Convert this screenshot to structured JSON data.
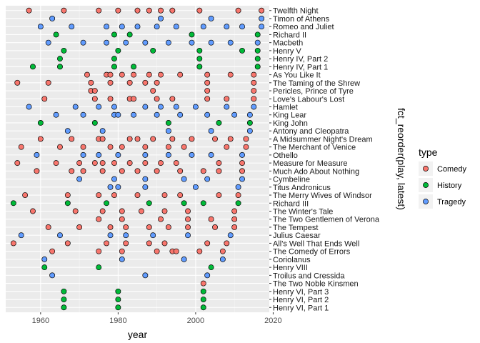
{
  "colors": {
    "panel": "#ebebeb",
    "grid_major": "#ffffff",
    "grid_minor": "#f5f5f5",
    "Comedy": "#F8766D",
    "History": "#00BA38",
    "Tragedy": "#619CFF",
    "point_stroke": "#000000"
  },
  "chart_data": {
    "type": "scatter",
    "xlabel": "year",
    "ylabel": "fct_reorder(play, latest)",
    "xlim": [
      1951,
      2019
    ],
    "x_ticks": [
      1960,
      1980,
      2000,
      2020
    ],
    "grid": true,
    "legend": {
      "title": "type",
      "position": "right",
      "entries": [
        "Comedy",
        "History",
        "Tragedy"
      ]
    },
    "plays": [
      {
        "name": "Twelfth Night",
        "type": "Comedy",
        "years": [
          1957,
          1966,
          1975,
          1980,
          1985,
          1988,
          1991,
          1994,
          2001,
          2011,
          2017
        ]
      },
      {
        "name": "Timon of Athens",
        "type": "Tragedy",
        "years": [
          1963,
          1991,
          2004,
          2017
        ]
      },
      {
        "name": "Romeo and Juliet",
        "type": "Tragedy",
        "years": [
          1960,
          1968,
          1977,
          1981,
          1985,
          1990,
          1995,
          2002,
          2008,
          2012,
          2017
        ]
      },
      {
        "name": "Richard II",
        "type": "History",
        "years": [
          1964,
          1979,
          1983,
          1999,
          2016
        ]
      },
      {
        "name": "Macbeth",
        "type": "Tragedy",
        "years": [
          1962,
          1971,
          1977,
          1982,
          1987,
          1993,
          1999,
          2004,
          2009,
          2016
        ]
      },
      {
        "name": "Henry V",
        "type": "History",
        "years": [
          1966,
          1980,
          1989,
          2001,
          2012,
          2016
        ]
      },
      {
        "name": "Henry IV, Part 2",
        "type": "History",
        "years": [
          1965,
          1979,
          2001,
          2016
        ]
      },
      {
        "name": "Henry IV, Part 1",
        "type": "History",
        "years": [
          1958,
          1965,
          1979,
          1984,
          2001,
          2016
        ]
      },
      {
        "name": "As You Like It",
        "type": "Comedy",
        "years": [
          1972,
          1977,
          1978,
          1981,
          1984,
          1988,
          1991,
          1996,
          2003,
          2009,
          2015
        ]
      },
      {
        "name": "The Taming of the Shrew",
        "type": "Comedy",
        "years": [
          1954,
          1962,
          1973,
          1978,
          1983,
          1987,
          1990,
          2003,
          2015
        ]
      },
      {
        "name": "Pericles, Prince of Tyre",
        "type": "Comedy",
        "years": [
          1973,
          1974,
          1989,
          2003,
          2015
        ]
      },
      {
        "name": "Love's Labour's Lost",
        "type": "Comedy",
        "years": [
          1961,
          1974,
          1978,
          1983,
          1984,
          1990,
          1994,
          2003,
          2008,
          2015
        ]
      },
      {
        "name": "Hamlet",
        "type": "Tragedy",
        "years": [
          1957,
          1969,
          1975,
          1979,
          1987,
          1991,
          1995,
          2000,
          2008,
          2015
        ]
      },
      {
        "name": "King Lear",
        "type": "Tragedy",
        "years": [
          1964,
          1971,
          1979,
          1980,
          1984,
          1990,
          1996,
          2003,
          2010,
          2014
        ]
      },
      {
        "name": "King John",
        "type": "History",
        "years": [
          1960,
          1974,
          1993,
          2006,
          2014
        ]
      },
      {
        "name": "Antony and Cleopatra",
        "type": "Tragedy",
        "years": [
          1967,
          1976,
          1993,
          2004,
          2014
        ]
      },
      {
        "name": "A Midsummer Night's Dream",
        "type": "Comedy",
        "years": [
          1960,
          1968,
          1975,
          1976,
          1983,
          1985,
          1989,
          1994,
          1999,
          2005,
          2009,
          2013
        ]
      },
      {
        "name": "The Merchant of Venice",
        "type": "Comedy",
        "years": [
          1955,
          1965,
          1971,
          1978,
          1981,
          1987,
          1993,
          1997,
          2008,
          2013
        ]
      },
      {
        "name": "Othello",
        "type": "Tragedy",
        "years": [
          1959,
          1971,
          1975,
          1980,
          1987,
          1993,
          1999,
          2004,
          2012
        ]
      },
      {
        "name": "Measure for Measure",
        "type": "Comedy",
        "years": [
          1954,
          1964,
          1970,
          1974,
          1976,
          1979,
          1983,
          1987,
          1991,
          1995,
          2006,
          2012
        ]
      },
      {
        "name": "Much Ado About Nothing",
        "type": "Comedy",
        "years": [
          1959,
          1968,
          1971,
          1976,
          1981,
          1985,
          1990,
          1996,
          2002,
          2006,
          2012
        ]
      },
      {
        "name": "Cymbeline",
        "type": "Tragedy",
        "years": [
          1970,
          1979,
          1987,
          1997,
          2003,
          2012
        ]
      },
      {
        "name": "Titus Andronicus",
        "type": "Tragedy",
        "years": [
          1978,
          1980,
          1987,
          2000,
          2011
        ]
      },
      {
        "name": "The Merry Wives of Windsor",
        "type": "Comedy",
        "years": [
          1956,
          1967,
          1975,
          1979,
          1985,
          1992,
          1996,
          2006,
          2011
        ]
      },
      {
        "name": "Richard III",
        "type": "History",
        "years": [
          1953,
          1967,
          1977,
          1988,
          1997,
          2002,
          2011
        ]
      },
      {
        "name": "The Winter's Tale",
        "type": "Comedy",
        "years": [
          1958,
          1969,
          1976,
          1981,
          1986,
          1992,
          1998,
          2010
        ]
      },
      {
        "name": "The Two Gentlemen of Verona",
        "type": "Comedy",
        "years": [
          1975,
          1981,
          1991,
          1998,
          2004,
          2010
        ]
      },
      {
        "name": "The Tempest",
        "type": "Comedy",
        "years": [
          1962,
          1970,
          1978,
          1982,
          1988,
          1993,
          1998,
          2005,
          2010
        ]
      },
      {
        "name": "Julius Caesar",
        "type": "Tragedy",
        "years": [
          1955,
          1965,
          1978,
          1982,
          1989,
          1998,
          2009
        ]
      },
      {
        "name": "All's Well That Ends Well",
        "type": "Comedy",
        "years": [
          1953,
          1967,
          1977,
          1982,
          1988,
          1992,
          2003,
          2008
        ]
      },
      {
        "name": "The Comedy of Errors",
        "type": "Comedy",
        "years": [
          1963,
          1975,
          1981,
          1990,
          1994,
          1995,
          2001,
          2007
        ]
      },
      {
        "name": "Coriolanus",
        "type": "Tragedy",
        "years": [
          1961,
          1981,
          1997,
          2007
        ]
      },
      {
        "name": "Henry VIII",
        "type": "History",
        "years": [
          1961,
          1975,
          2004
        ]
      },
      {
        "name": "Troilus and Cressida",
        "type": "Tragedy",
        "years": [
          1963,
          1987,
          2003
        ]
      },
      {
        "name": "The Two Noble Kinsmen",
        "type": "Comedy",
        "years": [
          2002
        ]
      },
      {
        "name": "Henry VI, Part 3",
        "type": "History",
        "years": [
          1966,
          1980,
          2002
        ]
      },
      {
        "name": "Henry VI, Part 2",
        "type": "History",
        "years": [
          1966,
          1980,
          2002
        ]
      },
      {
        "name": "Henry VI, Part 1",
        "type": "History",
        "years": [
          1966,
          1980,
          2002
        ]
      }
    ]
  }
}
